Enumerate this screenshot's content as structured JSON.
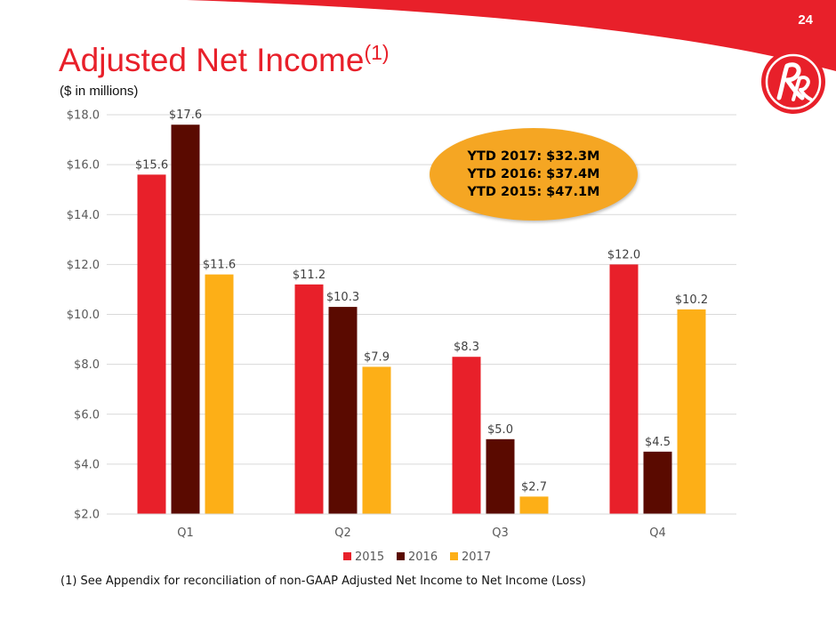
{
  "page_number": "24",
  "title": "Adjusted Net Income",
  "title_superscript": "(1)",
  "subtitle": "($ in millions)",
  "callout": {
    "line1": "YTD 2017: $32.3M",
    "line2": "YTD 2016: $37.4M",
    "line3": "YTD 2015: $47.1M"
  },
  "footnote": "(1) See Appendix for reconciliation of non-GAAP Adjusted Net Income to Net Income (Loss)",
  "colors": {
    "brand_red": "#e8202a",
    "dark": "#5a0a00",
    "gold": "#fdaf17"
  },
  "logo_icon": "rr-logo-icon",
  "chart_data": {
    "type": "bar",
    "categories": [
      "Q1",
      "Q2",
      "Q3",
      "Q4"
    ],
    "series": [
      {
        "name": "2015",
        "color": "#e8202a",
        "values": [
          15.6,
          11.2,
          8.3,
          12.0
        ],
        "labels": [
          "$15.6",
          "$11.2",
          "$8.3",
          "$12.0"
        ]
      },
      {
        "name": "2016",
        "color": "#5a0a00",
        "values": [
          17.6,
          10.3,
          5.0,
          4.5
        ],
        "labels": [
          "$17.6",
          "$10.3",
          "$5.0",
          "$4.5"
        ]
      },
      {
        "name": "2017",
        "color": "#fdaf17",
        "values": [
          11.6,
          7.9,
          2.7,
          10.2
        ],
        "labels": [
          "$11.6",
          "$7.9",
          "$2.7",
          "$10.2"
        ]
      }
    ],
    "ylim": [
      2.0,
      18.0
    ],
    "yticks": [
      2,
      4,
      6,
      8,
      10,
      12,
      14,
      16,
      18
    ],
    "ytick_labels": [
      "$2.0",
      "$4.0",
      "$6.0",
      "$8.0",
      "$10.0",
      "$12.0",
      "$14.0",
      "$16.0",
      "$18.0"
    ],
    "grid": true,
    "legend": "bottom",
    "xlabel": "",
    "ylabel": ""
  }
}
